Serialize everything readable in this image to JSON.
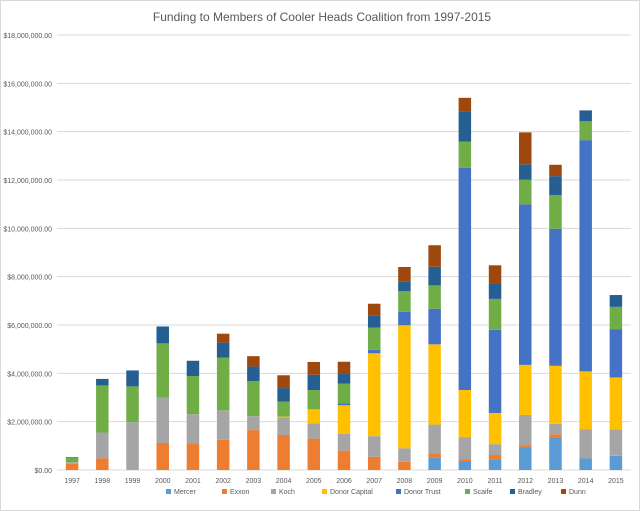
{
  "chart_data": {
    "type": "bar",
    "stacked": true,
    "title": "Funding to Members of Cooler Heads Coalition from 1997-2015",
    "xlabel": "",
    "ylabel": "",
    "ylim": [
      0,
      18000000
    ],
    "ytick_step": 2000000,
    "grid": true,
    "legend_position": "bottom",
    "categories": [
      "1997",
      "1998",
      "1999",
      "2000",
      "2001",
      "2002",
      "2003",
      "2004",
      "2005",
      "2006",
      "2007",
      "2008",
      "2009",
      "2010",
      "2011",
      "2012",
      "2013",
      "2014",
      "2015"
    ],
    "series": [
      {
        "name": "Mercer",
        "color": "#5B9BD5",
        "values": [
          0,
          0,
          0,
          0,
          0,
          0,
          0,
          0,
          0,
          0,
          0,
          0,
          510000,
          370000,
          430000,
          910000,
          1360000,
          490000,
          590000
        ]
      },
      {
        "name": "Exxon",
        "color": "#ED7D31",
        "values": [
          260000,
          480000,
          30000,
          1120000,
          1100000,
          1250000,
          1650000,
          1450000,
          1300000,
          800000,
          550000,
          340000,
          180000,
          80000,
          190000,
          120000,
          120000,
          30000,
          20000
        ]
      },
      {
        "name": "Koch",
        "color": "#A5A5A5",
        "values": [
          60000,
          1070000,
          1950000,
          1870000,
          1210000,
          1220000,
          580000,
          730000,
          630000,
          690000,
          850000,
          560000,
          1190000,
          910000,
          450000,
          1250000,
          430000,
          1170000,
          1070000
        ]
      },
      {
        "name": "Donor Capital",
        "color": "#FFC000",
        "values": [
          0,
          0,
          0,
          0,
          0,
          0,
          0,
          30000,
          580000,
          1190000,
          3430000,
          5090000,
          3320000,
          1950000,
          1290000,
          2070000,
          2400000,
          2390000,
          2150000
        ]
      },
      {
        "name": "Donor Trust",
        "color": "#4472C4",
        "values": [
          0,
          0,
          0,
          0,
          0,
          0,
          0,
          0,
          0,
          70000,
          140000,
          560000,
          1470000,
          9200000,
          3440000,
          6640000,
          5670000,
          9570000,
          2000000
        ]
      },
      {
        "name": "Scaife",
        "color": "#70AD47",
        "values": [
          180000,
          1950000,
          1480000,
          2250000,
          1580000,
          2180000,
          1450000,
          620000,
          800000,
          820000,
          920000,
          850000,
          970000,
          1080000,
          1280000,
          1020000,
          1400000,
          780000,
          920000
        ]
      },
      {
        "name": "Bradley",
        "color": "#255E91",
        "values": [
          30000,
          270000,
          660000,
          700000,
          630000,
          620000,
          600000,
          560000,
          630000,
          400000,
          510000,
          410000,
          770000,
          1250000,
          640000,
          640000,
          780000,
          450000,
          490000
        ]
      },
      {
        "name": "Dunn",
        "color": "#9E480E",
        "values": [
          0,
          0,
          0,
          0,
          0,
          370000,
          430000,
          530000,
          530000,
          510000,
          480000,
          590000,
          890000,
          560000,
          750000,
          1320000,
          470000,
          0,
          0
        ]
      }
    ]
  }
}
